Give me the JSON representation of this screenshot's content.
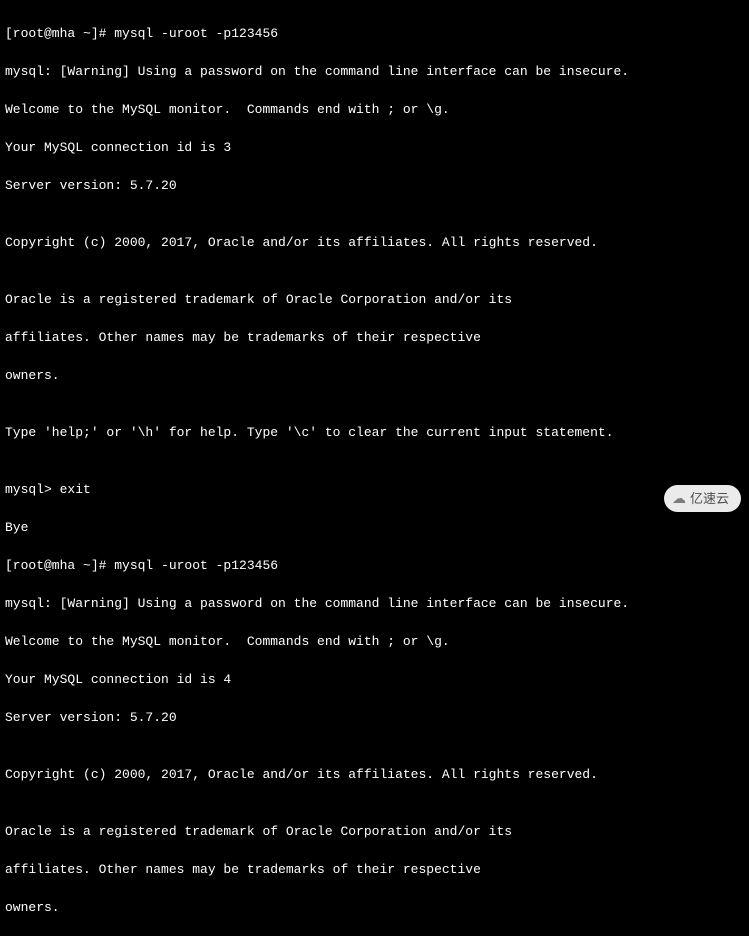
{
  "terminal": {
    "background_color": "#000000",
    "text_color": "#ffffff",
    "font_family": "Consolas, Courier New, monospace",
    "font_size": 13,
    "line_height": 19,
    "lines": [
      "[root@mha ~]# mysql -uroot -p123456",
      "mysql: [Warning] Using a password on the command line interface can be insecure.",
      "Welcome to the MySQL monitor.  Commands end with ; or \\g.",
      "Your MySQL connection id is 3",
      "Server version: 5.7.20",
      "",
      "Copyright (c) 2000, 2017, Oracle and/or its affiliates. All rights reserved.",
      "",
      "Oracle is a registered trademark of Oracle Corporation and/or its",
      "affiliates. Other names may be trademarks of their respective",
      "owners.",
      "",
      "Type 'help;' or '\\h' for help. Type '\\c' to clear the current input statement.",
      "",
      "mysql> exit",
      "Bye",
      "[root@mha ~]# mysql -uroot -p123456",
      "mysql: [Warning] Using a password on the command line interface can be insecure.",
      "Welcome to the MySQL monitor.  Commands end with ; or \\g.",
      "Your MySQL connection id is 4",
      "Server version: 5.7.20",
      "",
      "Copyright (c) 2000, 2017, Oracle and/or its affiliates. All rights reserved.",
      "",
      "Oracle is a registered trademark of Oracle Corporation and/or its",
      "affiliates. Other names may be trademarks of their respective",
      "owners."
    ]
  },
  "watermark": {
    "text": "亿速云",
    "background": "#ffffff",
    "text_color": "#555555"
  }
}
